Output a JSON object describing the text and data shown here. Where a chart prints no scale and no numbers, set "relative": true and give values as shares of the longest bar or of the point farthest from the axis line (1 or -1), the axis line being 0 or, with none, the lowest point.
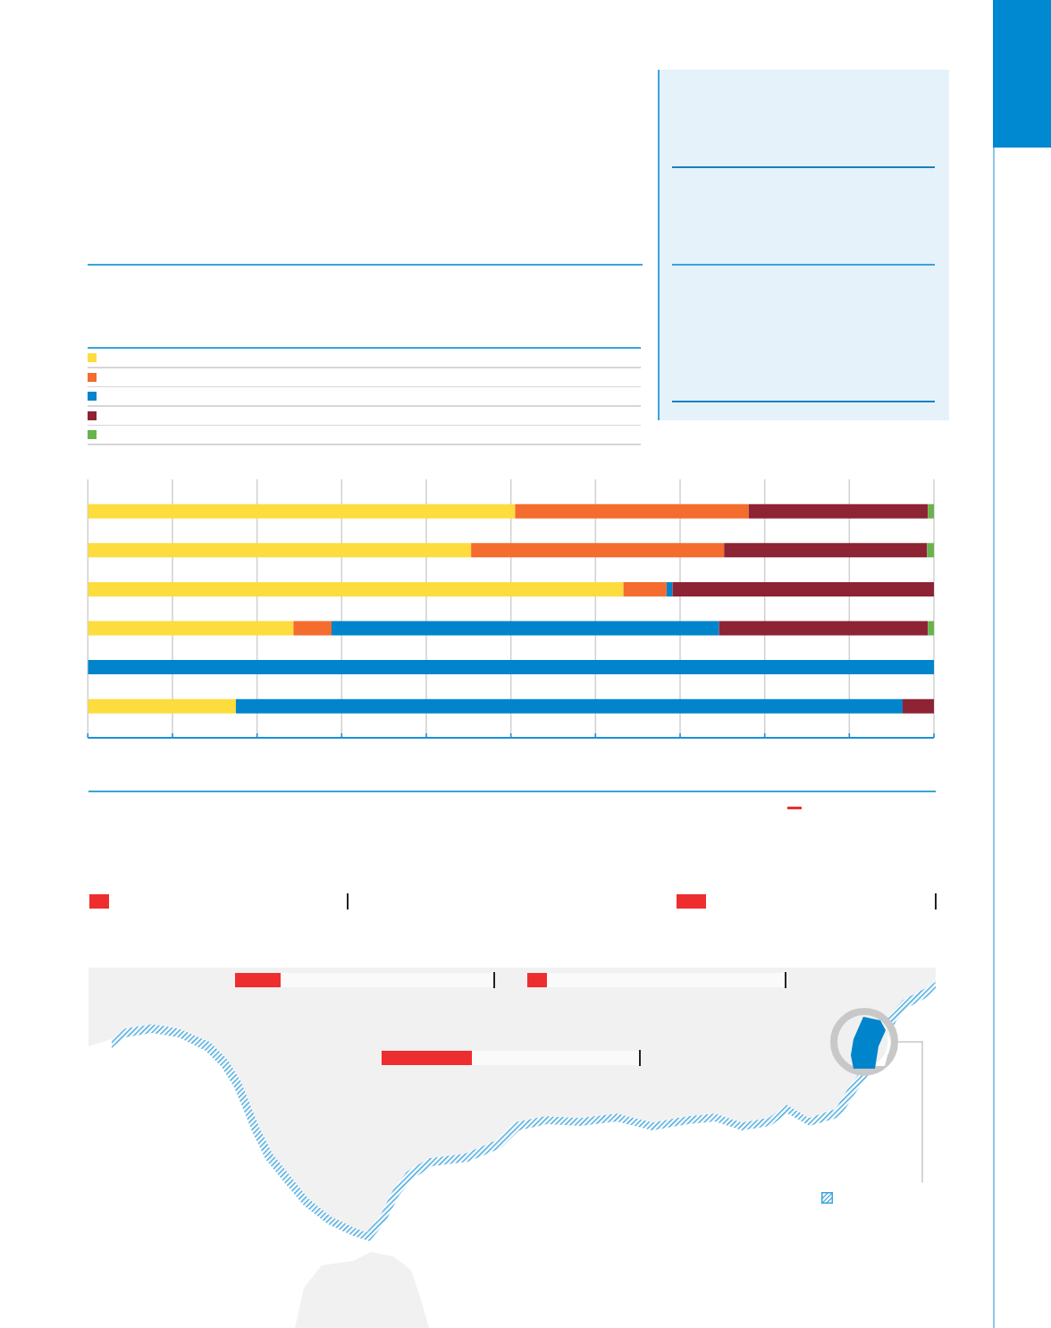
{
  "chart_data": {
    "type": "bar",
    "orientation": "horizontal",
    "stacked": true,
    "relative": true,
    "categories": [
      null,
      null,
      null,
      null,
      null,
      null
    ],
    "series": [
      {
        "color": "#fddc3d",
        "values": [
          0.505,
          0.453,
          0.633,
          0.243,
          null,
          0.175
        ]
      },
      {
        "color": "#f46c2e",
        "values": [
          0.276,
          0.299,
          0.051,
          0.045,
          null,
          null
        ]
      },
      {
        "color": "#0084cc",
        "values": [
          null,
          null,
          0.007,
          0.458,
          1,
          0.788
        ]
      },
      {
        "color": "#8d2333",
        "values": [
          0.212,
          0.24,
          0.309,
          0.247,
          null,
          0.037
        ]
      },
      {
        "color": "#67b44b",
        "values": [
          0.007,
          0.008,
          null,
          0.007,
          null,
          null
        ]
      }
    ],
    "grid": "x"
  }
}
